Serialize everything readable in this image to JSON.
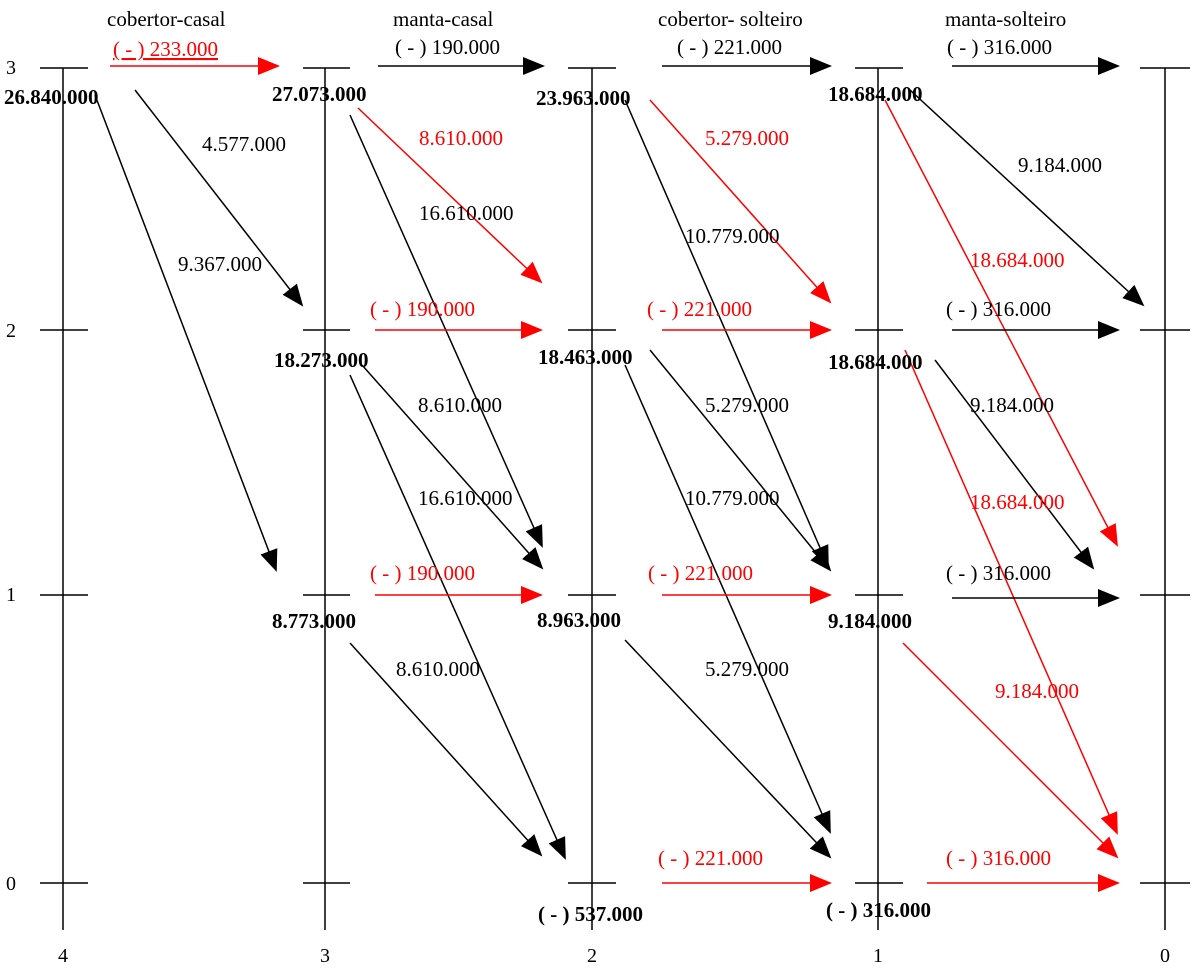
{
  "colors": {
    "black": "#000000",
    "red": "#ff0000"
  },
  "stage_labels": [
    "cobertor-casal",
    "manta-casal",
    "cobertor- solteiro",
    "manta-solteiro"
  ],
  "stage_numbers": [
    "4",
    "3",
    "2",
    "1",
    "0"
  ],
  "state_numbers": [
    "3",
    "2",
    "1",
    "0"
  ],
  "node_values": [
    "26.840.000",
    "27.073.000",
    "18.273.000",
    "8.773.000",
    "23.963.000",
    "18.463.000",
    "8.963.000",
    "( - ) 537.000",
    "18.684.000",
    "18.684.000",
    "9.184.000",
    "( - ) 316.000"
  ],
  "edge_labels": [
    "( - ) 233.000",
    "4.577.000",
    "9.367.000",
    "( - ) 190.000",
    "8.610.000",
    "16.610.000",
    "( - ) 190.000",
    "8.610.000",
    "16.610.000",
    "( - ) 190.000",
    "8.610.000",
    "( - ) 221.000",
    "5.279.000",
    "10.779.000",
    "( - ) 221.000",
    "5.279.000",
    "10.779.000",
    "( - ) 221.000",
    "5.279.000",
    "( - ) 221.000",
    "( - ) 316.000",
    "9.184.000",
    "18.684.000",
    "( - ) 316.000",
    "9.184.000",
    "18.684.000",
    "( - ) 316.000",
    "9.184.000",
    "( - ) 316.000"
  ]
}
